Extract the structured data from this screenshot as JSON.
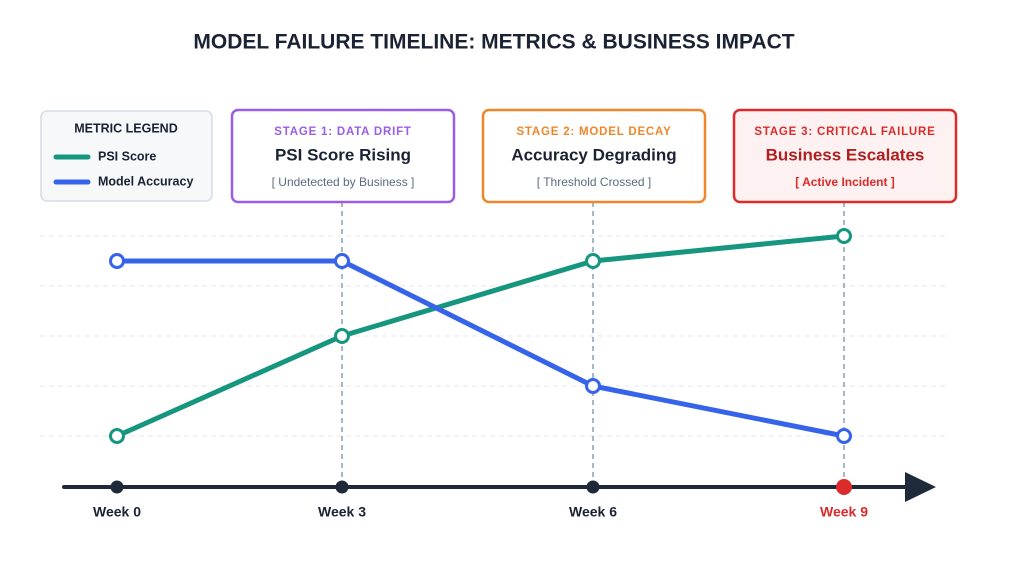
{
  "chart_data": {
    "type": "line",
    "title": "MODEL FAILURE TIMELINE: METRICS & BUSINESS IMPACT",
    "categories": [
      "Week 0",
      "Week 3",
      "Week 6",
      "Week 9"
    ],
    "series": [
      {
        "name": "PSI Score",
        "color": "#16967e",
        "values": [
          0,
          2,
          3.5,
          4
        ]
      },
      {
        "name": "Model Accuracy",
        "color": "#3563e9",
        "values": [
          3.5,
          3.5,
          1,
          0
        ]
      }
    ],
    "ylim": [
      0,
      4
    ],
    "yticks": [
      0,
      1,
      2,
      3,
      4
    ],
    "grid": true,
    "legend_title": "METRIC LEGEND",
    "stages": [
      {
        "label": "STAGE 1: DATA DRIFT",
        "headline": "PSI Score Rising",
        "note": "[ Undetected by Business ]",
        "color": "#9b5de5"
      },
      {
        "label": "STAGE 2: MODEL DECAY",
        "headline": "Accuracy Degrading",
        "note": "[ Threshold Crossed ]",
        "color": "#f0862a"
      },
      {
        "label": "STAGE 3: CRITICAL FAILURE",
        "headline": "Business Escalates",
        "note": "[ Active Incident ]",
        "color": "#dc2b2b"
      }
    ]
  }
}
